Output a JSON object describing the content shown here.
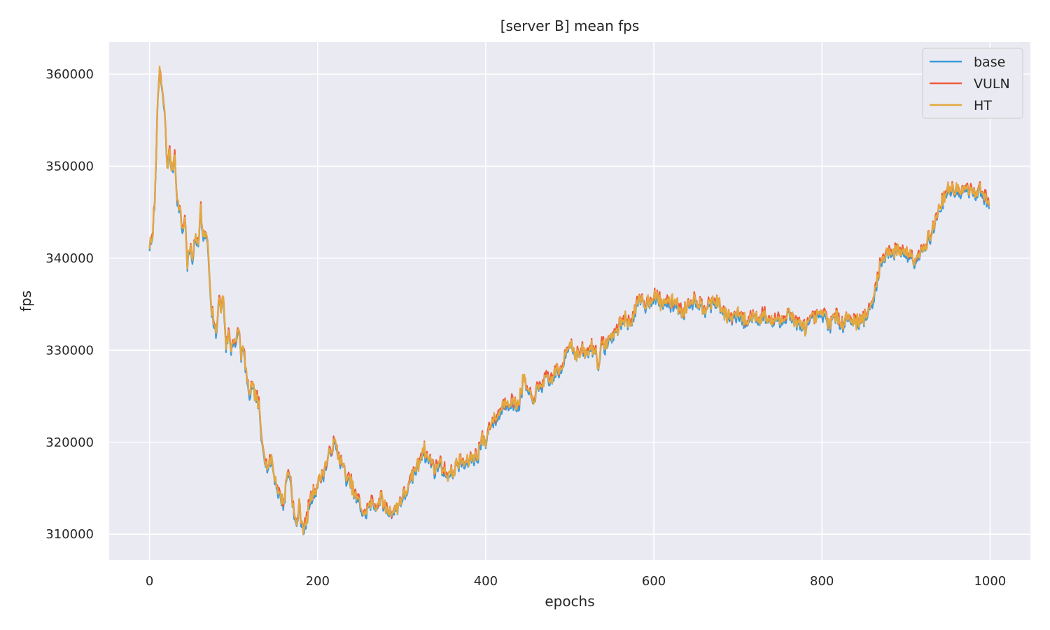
{
  "chart_data": {
    "type": "line",
    "title": "[server B] mean fps",
    "xlabel": "epochs",
    "ylabel": "fps",
    "xlim": [
      -48,
      1048
    ],
    "ylim": [
      307200,
      363500
    ],
    "xticks": [
      0,
      200,
      400,
      600,
      800,
      1000
    ],
    "yticks": [
      310000,
      320000,
      330000,
      340000,
      350000,
      360000
    ],
    "grid": true,
    "legend_position": "top-right",
    "colors": {
      "base": "#3a9ad9",
      "VULN": "#f05a3a",
      "HT": "#e3a93e",
      "background": "#eaeaf2",
      "grid": "#ffffff"
    },
    "keypoints": [
      [
        0,
        341500
      ],
      [
        3,
        341800
      ],
      [
        6,
        346000
      ],
      [
        8,
        352000
      ],
      [
        10,
        357000
      ],
      [
        12,
        360800
      ],
      [
        15,
        358000
      ],
      [
        18,
        356000
      ],
      [
        21,
        350000
      ],
      [
        24,
        351500
      ],
      [
        27,
        349500
      ],
      [
        30,
        351500
      ],
      [
        33,
        346000
      ],
      [
        36,
        345500
      ],
      [
        39,
        343000
      ],
      [
        42,
        344500
      ],
      [
        45,
        339500
      ],
      [
        48,
        341000
      ],
      [
        51,
        340000
      ],
      [
        55,
        342500
      ],
      [
        58,
        342000
      ],
      [
        61,
        345500
      ],
      [
        64,
        342000
      ],
      [
        67,
        343000
      ],
      [
        70,
        340500
      ],
      [
        73,
        334500
      ],
      [
        76,
        333500
      ],
      [
        79,
        331500
      ],
      [
        82,
        335500
      ],
      [
        85,
        334500
      ],
      [
        88,
        335800
      ],
      [
        91,
        330500
      ],
      [
        94,
        332000
      ],
      [
        97,
        330000
      ],
      [
        100,
        331500
      ],
      [
        103,
        330500
      ],
      [
        106,
        332500
      ],
      [
        109,
        329500
      ],
      [
        112,
        330000
      ],
      [
        115,
        327500
      ],
      [
        118,
        325000
      ],
      [
        121,
        326000
      ],
      [
        124,
        325500
      ],
      [
        127,
        325000
      ],
      [
        130,
        324000
      ],
      [
        133,
        320500
      ],
      [
        136,
        319500
      ],
      [
        139,
        317500
      ],
      [
        142,
        317500
      ],
      [
        145,
        318500
      ],
      [
        148,
        316500
      ],
      [
        151,
        315500
      ],
      [
        154,
        314500
      ],
      [
        157,
        314000
      ],
      [
        160,
        313500
      ],
      [
        163,
        316000
      ],
      [
        166,
        317000
      ],
      [
        169,
        315000
      ],
      [
        172,
        312000
      ],
      [
        175,
        311000
      ],
      [
        178,
        313000
      ],
      [
        181,
        311500
      ],
      [
        184,
        310500
      ],
      [
        187,
        311500
      ],
      [
        190,
        313500
      ],
      [
        195,
        314500
      ],
      [
        200,
        315500
      ],
      [
        205,
        316500
      ],
      [
        210,
        317500
      ],
      [
        215,
        319000
      ],
      [
        220,
        320000
      ],
      [
        225,
        318500
      ],
      [
        230,
        317500
      ],
      [
        235,
        316000
      ],
      [
        240,
        315500
      ],
      [
        245,
        314000
      ],
      [
        250,
        313500
      ],
      [
        255,
        312000
      ],
      [
        260,
        313000
      ],
      [
        265,
        313500
      ],
      [
        270,
        313000
      ],
      [
        275,
        314000
      ],
      [
        280,
        313000
      ],
      [
        285,
        312500
      ],
      [
        290,
        312500
      ],
      [
        295,
        313000
      ],
      [
        300,
        314000
      ],
      [
        305,
        314500
      ],
      [
        310,
        315500
      ],
      [
        315,
        317000
      ],
      [
        320,
        317500
      ],
      [
        325,
        319500
      ],
      [
        330,
        318500
      ],
      [
        335,
        318000
      ],
      [
        340,
        317000
      ],
      [
        345,
        318000
      ],
      [
        350,
        317000
      ],
      [
        355,
        316500
      ],
      [
        360,
        316500
      ],
      [
        365,
        317500
      ],
      [
        370,
        318000
      ],
      [
        375,
        317500
      ],
      [
        380,
        318000
      ],
      [
        385,
        318500
      ],
      [
        390,
        318500
      ],
      [
        395,
        320500
      ],
      [
        400,
        320000
      ],
      [
        405,
        322000
      ],
      [
        410,
        322500
      ],
      [
        415,
        323000
      ],
      [
        420,
        324000
      ],
      [
        425,
        324500
      ],
      [
        430,
        324500
      ],
      [
        435,
        324000
      ],
      [
        440,
        324500
      ],
      [
        445,
        327000
      ],
      [
        450,
        325500
      ],
      [
        455,
        324500
      ],
      [
        460,
        325500
      ],
      [
        465,
        326000
      ],
      [
        470,
        327000
      ],
      [
        475,
        326500
      ],
      [
        480,
        327000
      ],
      [
        485,
        328000
      ],
      [
        490,
        327500
      ],
      [
        495,
        330000
      ],
      [
        500,
        331000
      ],
      [
        505,
        330000
      ],
      [
        510,
        329500
      ],
      [
        515,
        330000
      ],
      [
        520,
        329500
      ],
      [
        525,
        330500
      ],
      [
        530,
        330000
      ],
      [
        534,
        328500
      ],
      [
        538,
        330500
      ],
      [
        542,
        330500
      ],
      [
        546,
        331000
      ],
      [
        550,
        331500
      ],
      [
        555,
        332000
      ],
      [
        560,
        333000
      ],
      [
        565,
        333500
      ],
      [
        570,
        333000
      ],
      [
        575,
        333500
      ],
      [
        580,
        335000
      ],
      [
        585,
        335500
      ],
      [
        590,
        335000
      ],
      [
        595,
        335500
      ],
      [
        600,
        336000
      ],
      [
        605,
        335500
      ],
      [
        610,
        335000
      ],
      [
        615,
        335500
      ],
      [
        620,
        335000
      ],
      [
        625,
        335500
      ],
      [
        630,
        334500
      ],
      [
        635,
        334000
      ],
      [
        640,
        335000
      ],
      [
        645,
        335500
      ],
      [
        650,
        335500
      ],
      [
        655,
        335000
      ],
      [
        660,
        334500
      ],
      [
        665,
        335500
      ],
      [
        670,
        335000
      ],
      [
        675,
        335500
      ],
      [
        680,
        334500
      ],
      [
        685,
        334000
      ],
      [
        690,
        333500
      ],
      [
        695,
        333500
      ],
      [
        700,
        334000
      ],
      [
        705,
        333500
      ],
      [
        710,
        333000
      ],
      [
        715,
        333500
      ],
      [
        720,
        334000
      ],
      [
        725,
        333500
      ],
      [
        730,
        334000
      ],
      [
        735,
        333500
      ],
      [
        740,
        333000
      ],
      [
        745,
        333500
      ],
      [
        750,
        333000
      ],
      [
        755,
        333500
      ],
      [
        760,
        334500
      ],
      [
        765,
        333500
      ],
      [
        770,
        333000
      ],
      [
        775,
        332500
      ],
      [
        780,
        332500
      ],
      [
        785,
        333000
      ],
      [
        790,
        333500
      ],
      [
        795,
        333500
      ],
      [
        800,
        334000
      ],
      [
        805,
        333500
      ],
      [
        810,
        333000
      ],
      [
        815,
        333500
      ],
      [
        820,
        333500
      ],
      [
        825,
        333000
      ],
      [
        830,
        333500
      ],
      [
        835,
        333500
      ],
      [
        840,
        333000
      ],
      [
        845,
        333500
      ],
      [
        850,
        333500
      ],
      [
        855,
        334000
      ],
      [
        860,
        335000
      ],
      [
        863,
        336500
      ],
      [
        866,
        338000
      ],
      [
        869,
        339000
      ],
      [
        872,
        340000
      ],
      [
        875,
        340500
      ],
      [
        880,
        341000
      ],
      [
        885,
        340500
      ],
      [
        890,
        341000
      ],
      [
        895,
        341000
      ],
      [
        900,
        340500
      ],
      [
        905,
        340500
      ],
      [
        910,
        340000
      ],
      [
        915,
        340500
      ],
      [
        920,
        341000
      ],
      [
        925,
        342000
      ],
      [
        930,
        342500
      ],
      [
        935,
        344000
      ],
      [
        940,
        345500
      ],
      [
        945,
        346500
      ],
      [
        950,
        347500
      ],
      [
        955,
        347500
      ],
      [
        960,
        347500
      ],
      [
        965,
        347000
      ],
      [
        970,
        347500
      ],
      [
        975,
        347500
      ],
      [
        980,
        347000
      ],
      [
        985,
        347500
      ],
      [
        990,
        347500
      ],
      [
        995,
        346500
      ],
      [
        999,
        345500
      ]
    ],
    "series": [
      {
        "name": "base",
        "color": "#3a9ad9",
        "offset": -250,
        "seed": 11
      },
      {
        "name": "VULN",
        "color": "#f05a3a",
        "offset": 150,
        "seed": 23
      },
      {
        "name": "HT",
        "color": "#e3a93e",
        "offset": 0,
        "seed": 37
      }
    ],
    "tick_labels_x": [
      "0",
      "200",
      "400",
      "600",
      "800",
      "1000"
    ],
    "tick_labels_y": [
      "310000",
      "320000",
      "330000",
      "340000",
      "350000",
      "360000"
    ]
  }
}
